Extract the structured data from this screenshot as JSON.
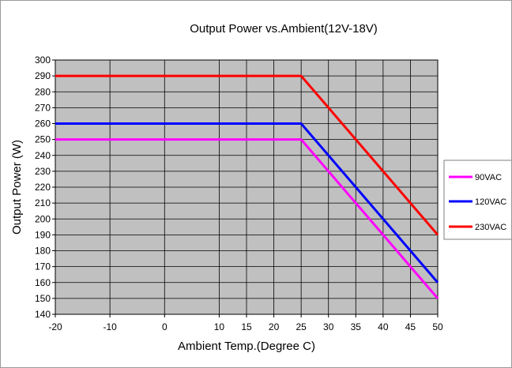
{
  "chart_data": {
    "type": "line",
    "title": "Output Power vs.Ambient(12V-18V)",
    "xlabel": "Ambient Temp.(Degree C)",
    "ylabel": "Output Power (W)",
    "xlim": [
      -20,
      50
    ],
    "ylim": [
      140,
      300
    ],
    "xticks": [
      -20,
      -10,
      0,
      10,
      15,
      20,
      25,
      30,
      35,
      40,
      45,
      50
    ],
    "yticks": [
      140,
      150,
      160,
      170,
      180,
      190,
      200,
      210,
      220,
      230,
      240,
      250,
      260,
      270,
      280,
      290,
      300
    ],
    "grid": true,
    "legend_position": "right",
    "plot_background": "#c0c0c0",
    "series": [
      {
        "name": "90VAC",
        "color": "#ff00ff",
        "x": [
          -20,
          25,
          50
        ],
        "y": [
          250,
          250,
          150
        ]
      },
      {
        "name": "120VAC",
        "color": "#0000ff",
        "x": [
          -20,
          25,
          50
        ],
        "y": [
          260,
          260,
          160
        ]
      },
      {
        "name": "230VAC",
        "color": "#ff0000",
        "x": [
          -20,
          25,
          50
        ],
        "y": [
          290,
          290,
          190
        ]
      }
    ]
  }
}
